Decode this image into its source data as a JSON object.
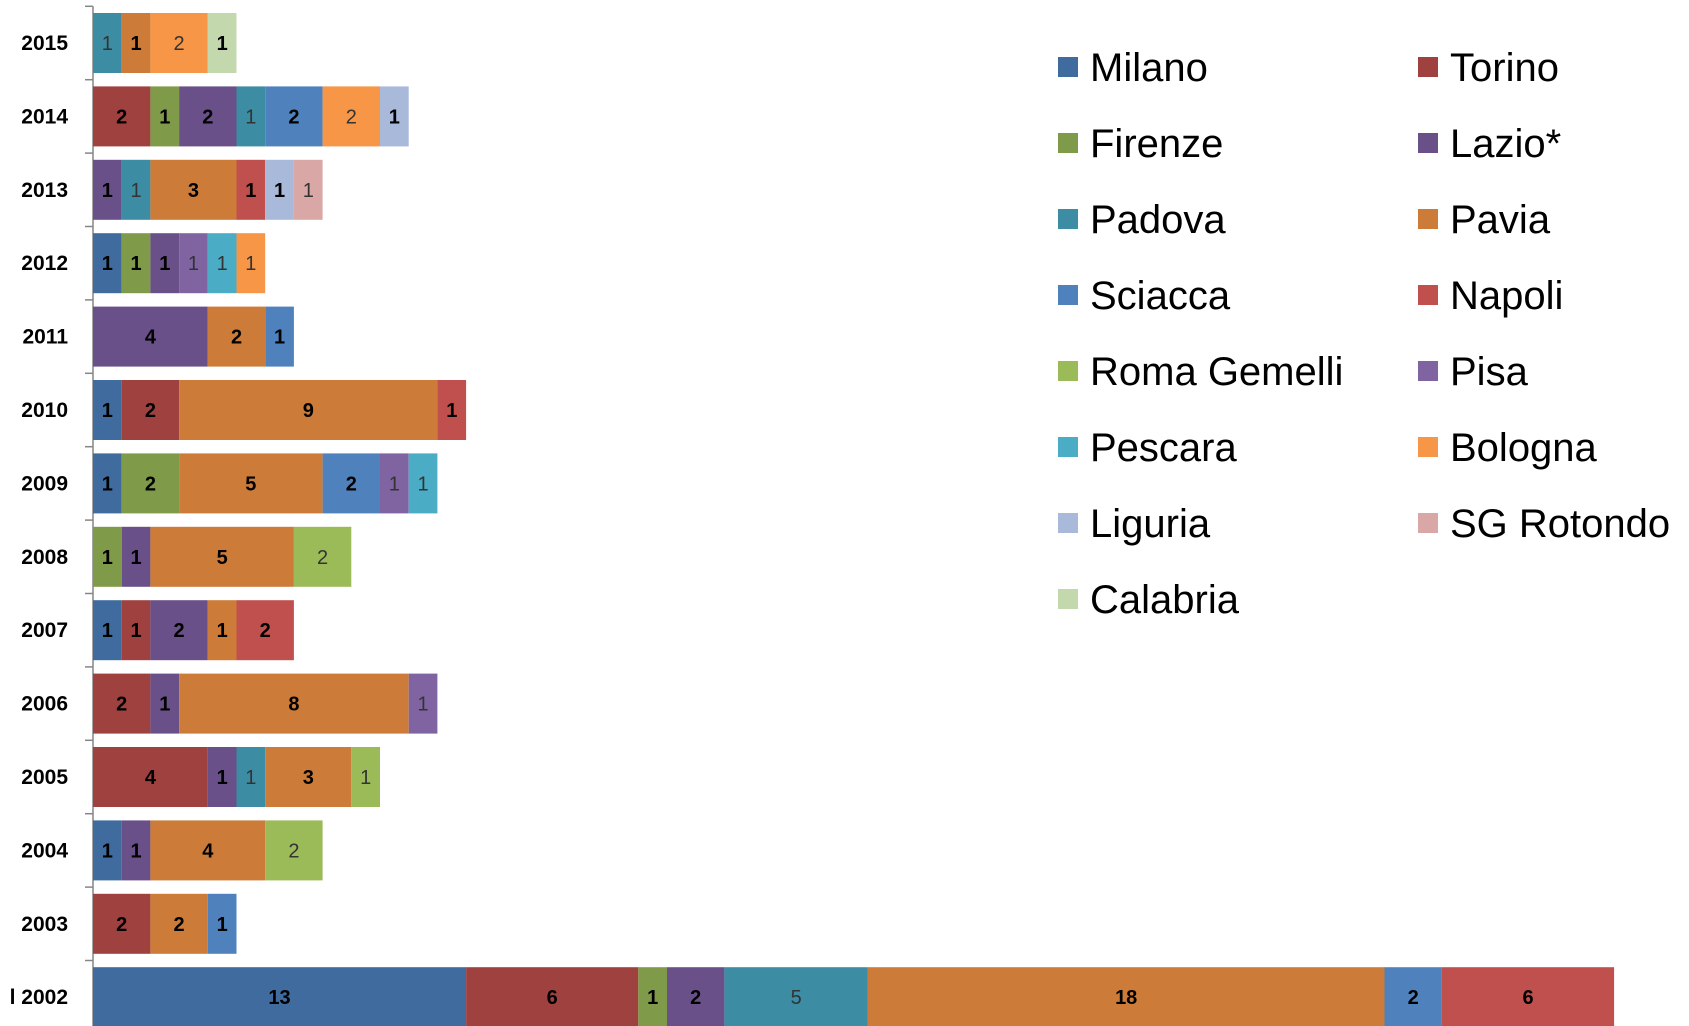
{
  "chart_data": {
    "type": "bar",
    "orientation": "horizontal",
    "stacked": true,
    "title": "",
    "xlabel": "",
    "ylabel": "",
    "grid": false,
    "legend_position": "top-right",
    "categories": [
      "2015",
      "2014",
      "2013",
      "2012",
      "2011",
      "2010",
      "2009",
      "2008",
      "2007",
      "2006",
      "2005",
      "2004",
      "2003",
      "l 2002"
    ],
    "series": [
      {
        "name": "Milano",
        "color": "#3F6B9F",
        "label_bold": true,
        "values": [
          0,
          0,
          0,
          1,
          0,
          1,
          1,
          0,
          1,
          0,
          0,
          1,
          0,
          13
        ]
      },
      {
        "name": "Torino",
        "color": "#9E413F",
        "label_bold": true,
        "values": [
          0,
          2,
          0,
          0,
          0,
          2,
          0,
          0,
          1,
          2,
          4,
          0,
          2,
          6
        ]
      },
      {
        "name": "Firenze",
        "color": "#7F9A48",
        "label_bold": true,
        "values": [
          0,
          1,
          0,
          1,
          0,
          0,
          2,
          1,
          0,
          0,
          0,
          0,
          0,
          1
        ]
      },
      {
        "name": "Lazio*",
        "color": "#6A5089",
        "label_bold": true,
        "values": [
          0,
          2,
          1,
          1,
          4,
          0,
          0,
          1,
          2,
          1,
          1,
          1,
          0,
          2
        ]
      },
      {
        "name": "Padova",
        "color": "#3C8DA3",
        "label_bold": false,
        "values": [
          1,
          1,
          1,
          0,
          0,
          0,
          0,
          0,
          0,
          0,
          1,
          0,
          0,
          5
        ]
      },
      {
        "name": "Pavia",
        "color": "#CC7B38",
        "label_bold": true,
        "values": [
          1,
          0,
          3,
          0,
          2,
          9,
          5,
          5,
          1,
          8,
          3,
          4,
          2,
          18
        ]
      },
      {
        "name": "Sciacca",
        "color": "#4F81BD",
        "label_bold": true,
        "values": [
          0,
          2,
          0,
          0,
          1,
          0,
          2,
          0,
          0,
          0,
          0,
          0,
          1,
          2
        ]
      },
      {
        "name": "Napoli",
        "color": "#C0504D",
        "label_bold": true,
        "values": [
          0,
          0,
          1,
          0,
          0,
          1,
          0,
          0,
          2,
          0,
          0,
          0,
          0,
          6
        ]
      },
      {
        "name": "Roma Gemelli",
        "color": "#9BBB59",
        "label_bold": false,
        "values": [
          0,
          0,
          0,
          0,
          0,
          0,
          0,
          2,
          0,
          0,
          1,
          2,
          0,
          0
        ]
      },
      {
        "name": "Pisa",
        "color": "#8064A2",
        "label_bold": false,
        "values": [
          0,
          0,
          0,
          1,
          0,
          0,
          1,
          0,
          0,
          1,
          0,
          0,
          0,
          0
        ]
      },
      {
        "name": "Pescara",
        "color": "#4BACC6",
        "label_bold": false,
        "values": [
          0,
          0,
          0,
          1,
          0,
          0,
          1,
          0,
          0,
          0,
          0,
          0,
          0,
          0
        ]
      },
      {
        "name": "Bologna",
        "color": "#F79646",
        "label_bold": false,
        "values": [
          2,
          2,
          0,
          1,
          0,
          0,
          0,
          0,
          0,
          0,
          0,
          0,
          0,
          0
        ]
      },
      {
        "name": "Liguria",
        "color": "#A9B9DA",
        "label_bold": true,
        "values": [
          0,
          1,
          1,
          0,
          0,
          0,
          0,
          0,
          0,
          0,
          0,
          0,
          0,
          0
        ]
      },
      {
        "name": "SG Rotondo",
        "color": "#D9A7A6",
        "label_bold": false,
        "values": [
          0,
          0,
          1,
          0,
          0,
          0,
          0,
          0,
          0,
          0,
          0,
          0,
          0,
          0
        ]
      },
      {
        "name": "Calabria",
        "color": "#C4D8AE",
        "label_bold": true,
        "values": [
          1,
          0,
          0,
          0,
          0,
          0,
          0,
          0,
          0,
          0,
          0,
          0,
          0,
          0
        ]
      }
    ],
    "xlim": [
      0,
      53
    ]
  }
}
